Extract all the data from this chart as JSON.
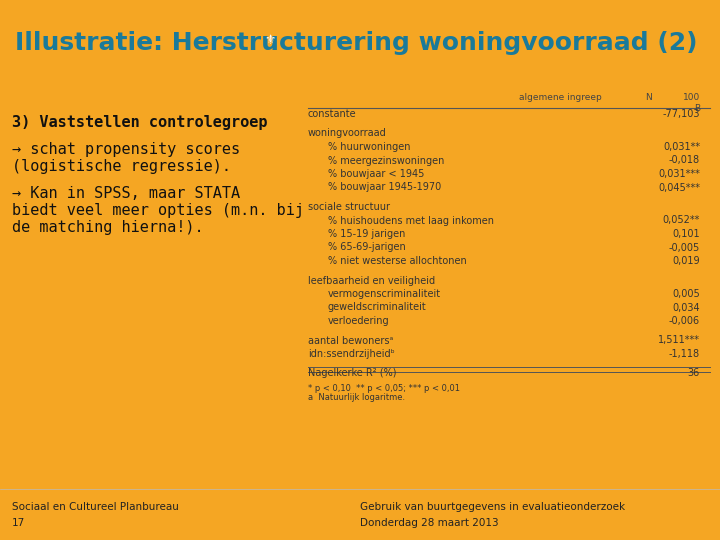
{
  "title": "Illustratie: Herstructurering woningvoorraad (2)",
  "title_color": "#1a7a9a",
  "header_bg": "#f5a623",
  "footer_bg": "#f5a623",
  "body_bg": "#ffffff",
  "slide_bg": "#f5a623",
  "navy_bar_color": "#1a3355",
  "left_text_lines": [
    {
      "text": "3) Vaststellen controlegroep",
      "bold": true,
      "indent": 0
    },
    {
      "text": "",
      "bold": false,
      "indent": 0
    },
    {
      "text": "→ schat propensity scores",
      "bold": false,
      "indent": 0
    },
    {
      "text": "(logistische regressie).",
      "bold": false,
      "indent": 0
    },
    {
      "text": "",
      "bold": false,
      "indent": 0
    },
    {
      "text": "→ Kan in SPSS, maar STATA",
      "bold": false,
      "indent": 0
    },
    {
      "text": "biedt veel meer opties (m.n. bij",
      "bold": false,
      "indent": 0
    },
    {
      "text": "de matching hierna!).",
      "bold": false,
      "indent": 0
    }
  ],
  "table_rows": [
    {
      "label": "constante",
      "value": "-77,103",
      "bold": false,
      "indent": 0,
      "type": "data"
    },
    {
      "label": "",
      "value": "",
      "bold": false,
      "indent": 0,
      "type": "spacer"
    },
    {
      "label": "woningvoorraad",
      "value": "",
      "bold": false,
      "indent": 0,
      "type": "section"
    },
    {
      "label": "% huurwoningen",
      "value": "0,031**",
      "bold": false,
      "indent": 1,
      "type": "data"
    },
    {
      "label": "% meergezinswoningen",
      "value": "-0,018",
      "bold": false,
      "indent": 1,
      "type": "data"
    },
    {
      "label": "% bouwjaar < 1945",
      "value": "0,031***",
      "bold": false,
      "indent": 1,
      "type": "data"
    },
    {
      "label": "% bouwjaar 1945-1970",
      "value": "0,045***",
      "bold": false,
      "indent": 1,
      "type": "data"
    },
    {
      "label": "",
      "value": "",
      "bold": false,
      "indent": 0,
      "type": "spacer"
    },
    {
      "label": "sociale structuur",
      "value": "",
      "bold": false,
      "indent": 0,
      "type": "section"
    },
    {
      "label": "% huishoudens met laag inkomen",
      "value": "0,052**",
      "bold": false,
      "indent": 1,
      "type": "data"
    },
    {
      "label": "% 15-19 jarigen",
      "value": "0,101",
      "bold": false,
      "indent": 1,
      "type": "data"
    },
    {
      "label": "% 65-69-jarigen",
      "value": "-0,005",
      "bold": false,
      "indent": 1,
      "type": "data"
    },
    {
      "label": "% niet westerse allochtonen",
      "value": "0,019",
      "bold": false,
      "indent": 1,
      "type": "data"
    },
    {
      "label": "",
      "value": "",
      "bold": false,
      "indent": 0,
      "type": "spacer"
    },
    {
      "label": "leefbaarheid en veiligheid",
      "value": "",
      "bold": false,
      "indent": 0,
      "type": "section"
    },
    {
      "label": "vermogenscriminaliteit",
      "value": "0,005",
      "bold": false,
      "indent": 1,
      "type": "data"
    },
    {
      "label": "geweldscriminaliteit",
      "value": "0,034",
      "bold": false,
      "indent": 1,
      "type": "data"
    },
    {
      "label": "verloedering",
      "value": "-0,006",
      "bold": false,
      "indent": 1,
      "type": "data"
    },
    {
      "label": "",
      "value": "",
      "bold": false,
      "indent": 0,
      "type": "spacer"
    },
    {
      "label": "aantal bewonersᵃ",
      "value": "1,511***",
      "bold": false,
      "indent": 0,
      "type": "data"
    },
    {
      "label": "idn:ssendrzijheidᵇ",
      "value": "-1,118",
      "bold": false,
      "indent": 0,
      "type": "data"
    },
    {
      "label": "",
      "value": "",
      "bold": false,
      "indent": 0,
      "type": "spacer"
    },
    {
      "label": "Nagelkerke R² (%)",
      "value": "36",
      "bold": false,
      "indent": 0,
      "type": "last"
    }
  ],
  "col_header_label": "algemene ingreep",
  "col_header_N": "N",
  "col_header_100": "100",
  "col_header_B": "B",
  "footnote1": "* p < 0,10  ** p < 0,05; *** p < 0,01",
  "footnote2": "a  Natuurlijk logaritme.",
  "footer_left1": "Sociaal en Cultureel Planbureau",
  "footer_left2": "17",
  "footer_right1": "Gebruik van buurtgegevens in evaluatieonderzoek",
  "footer_right2": "Donderdag 28 maart 2013"
}
